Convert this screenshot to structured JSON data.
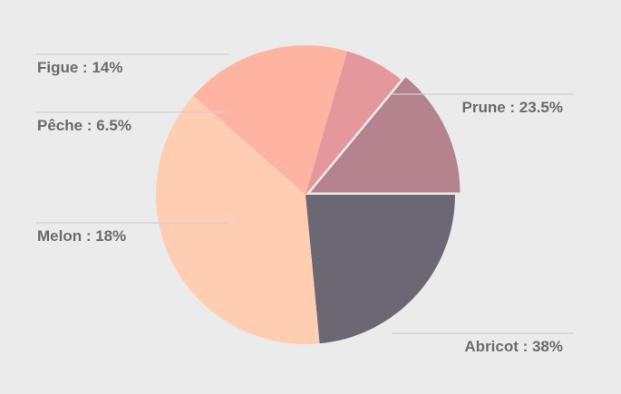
{
  "chart_data": {
    "type": "pie",
    "title": "",
    "slices": [
      {
        "label": "Prune",
        "value": 23.5,
        "display": "Prune : 23.5%",
        "color": "#6c6873"
      },
      {
        "label": "Abricot",
        "value": 38,
        "display": "Abricot : 38%",
        "color": "#ffcdb2"
      },
      {
        "label": "Melon",
        "value": 18,
        "display": "Melon : 18%",
        "color": "#ffb4a2"
      },
      {
        "label": "Pêche",
        "value": 6.5,
        "display": "Pêche : 6.5%",
        "color": "#e5989b"
      },
      {
        "label": "Figue",
        "value": 14,
        "display": "Figue : 14%",
        "color": "#b5838d"
      }
    ],
    "start_angle_deg": 0,
    "direction": "clockwise",
    "exploded_slice": "Figue",
    "legend": "none",
    "labels": "outside-with-leader-lines"
  }
}
